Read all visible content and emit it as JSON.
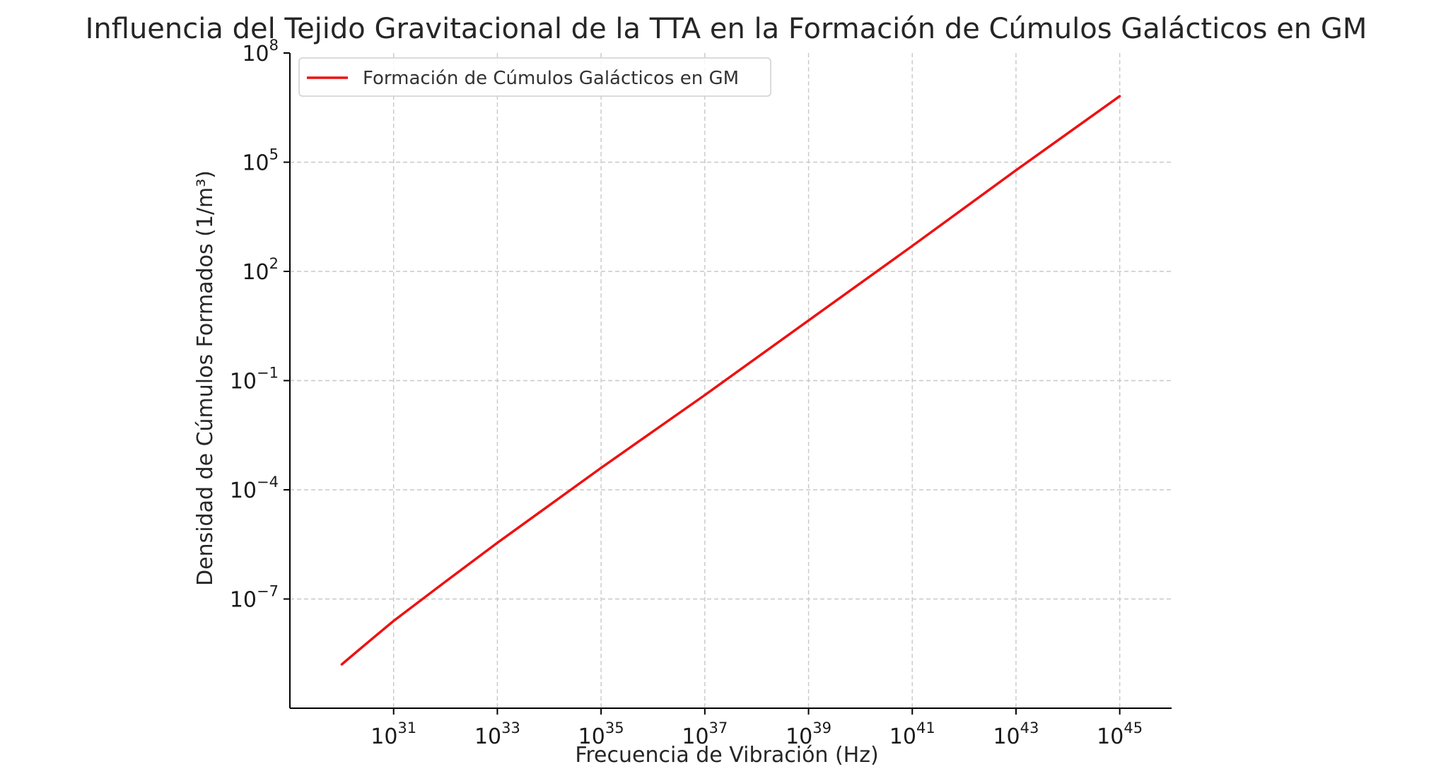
{
  "chart_data": {
    "type": "line",
    "title": "Influencia del Tejido Gravitacional de la TTA en la Formación de Cúmulos Galácticos en GM",
    "xlabel": "Frecuencia de Vibración (Hz)",
    "ylabel": "Densidad de Cúmulos Formados (1/m³)",
    "x_scale": "log",
    "y_scale": "log",
    "xlim": [
      1e+29,
      1e+46
    ],
    "ylim": [
      1e-10,
      100000000.0
    ],
    "x_ticks": [
      {
        "value": 1e+31,
        "base": "10",
        "exp": "31"
      },
      {
        "value": 1e+33,
        "base": "10",
        "exp": "33"
      },
      {
        "value": 1e+35,
        "base": "10",
        "exp": "35"
      },
      {
        "value": 1e+37,
        "base": "10",
        "exp": "37"
      },
      {
        "value": 1e+39,
        "base": "10",
        "exp": "39"
      },
      {
        "value": 1e+41,
        "base": "10",
        "exp": "41"
      },
      {
        "value": 1e+43,
        "base": "10",
        "exp": "43"
      },
      {
        "value": 1e+45,
        "base": "10",
        "exp": "45"
      }
    ],
    "y_ticks": [
      {
        "value": 1e-07,
        "base": "10",
        "exp": "−7"
      },
      {
        "value": 0.0001,
        "base": "10",
        "exp": "−4"
      },
      {
        "value": 0.1,
        "base": "10",
        "exp": "−1"
      },
      {
        "value": 100.0,
        "base": "10",
        "exp": "2"
      },
      {
        "value": 100000.0,
        "base": "10",
        "exp": "5"
      },
      {
        "value": 100000000.0,
        "base": "10",
        "exp": "8"
      }
    ],
    "grid": true,
    "legend_position": "upper-left",
    "series": [
      {
        "name": "Formación de Cúmulos Galácticos en GM",
        "color": "#ee1111",
        "x": [
          1e+30,
          3e+30,
          1e+31,
          1e+32,
          1e+33,
          1e+35,
          1e+37,
          1e+39,
          1e+41,
          1e+43,
          1e+45
        ],
        "y": [
          1.6e-09,
          6e-09,
          2.5e-08,
          3e-07,
          3.5e-06,
          0.0004,
          0.04,
          4.5,
          500,
          60000,
          6500000.0
        ]
      }
    ]
  }
}
